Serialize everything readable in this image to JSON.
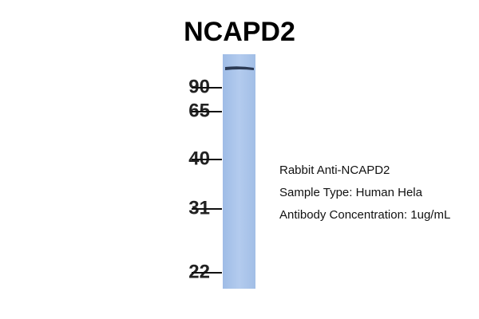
{
  "title": "NCAPD2",
  "markers": [
    "90",
    "65",
    "40",
    "31",
    "22"
  ],
  "notes": [
    "Rabbit Anti-NCAPD2",
    "Sample Type: Human Hela",
    "Antibody Concentration: 1ug/mL"
  ]
}
